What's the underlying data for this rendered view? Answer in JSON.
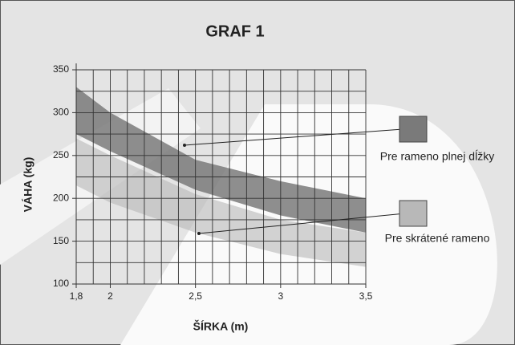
{
  "chart_data": {
    "type": "band",
    "title": "GRAF 1",
    "x_label": "ŠÍRKA (m)",
    "y_label": "VÁHA (kg)",
    "x": [
      1.8,
      2.0,
      2.5,
      3.0,
      3.5
    ],
    "series": [
      {
        "name": "Pre rameno plnej dĺžky",
        "color": "#7a7a7a",
        "upper": [
          330,
          300,
          245,
          220,
          200
        ],
        "lower": [
          275,
          255,
          210,
          180,
          160
        ]
      },
      {
        "name": "Pre skrátené rameno",
        "color": "#b8b8b8",
        "upper": [
          270,
          250,
          205,
          175,
          160
        ],
        "lower": [
          215,
          195,
          160,
          135,
          120
        ]
      }
    ],
    "xlim": [
      1.8,
      3.5
    ],
    "ylim": [
      100,
      350
    ],
    "xticks": [
      {
        "value": 1.8,
        "label": "1,8"
      },
      2,
      {
        "value": 2.5,
        "label": "2,5"
      },
      3,
      {
        "value": 3.5,
        "label": "3,5"
      }
    ],
    "yticks": [
      100,
      150,
      200,
      250,
      300,
      350
    ],
    "xminorticks": [
      1.9,
      2.1,
      2.2,
      2.3,
      2.4,
      2.6,
      2.7,
      2.8,
      2.9,
      3.1,
      3.2,
      3.3,
      3.4
    ],
    "yminorticks": [
      125,
      175,
      225,
      275,
      325
    ],
    "grid": true
  }
}
